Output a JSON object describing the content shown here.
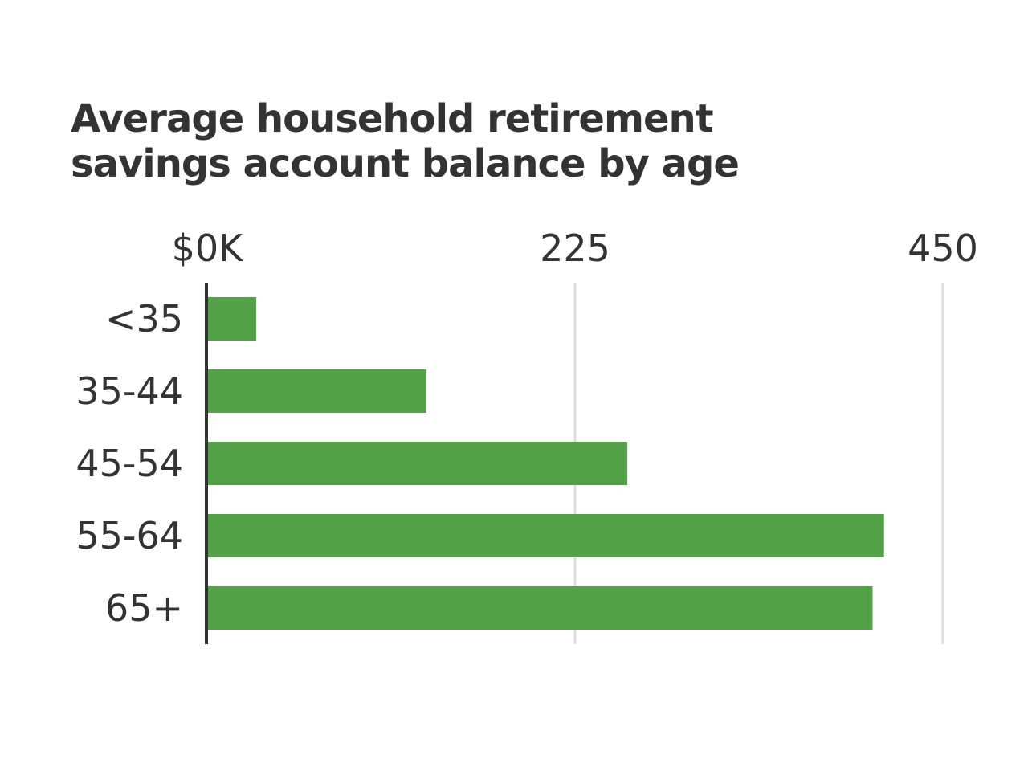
{
  "chart_data": {
    "type": "bar",
    "orientation": "horizontal",
    "title_lines": [
      "Average household retirement",
      "savings account balance by age"
    ],
    "categories": [
      "<35",
      "35-44",
      "45-54",
      "55-64",
      "65+"
    ],
    "values": [
      30,
      134,
      257,
      414,
      407
    ],
    "xlim": [
      0,
      450
    ],
    "x_ticks": [
      {
        "value": 0,
        "label": "$0K"
      },
      {
        "value": 225,
        "label": "225"
      },
      {
        "value": 450,
        "label": "450"
      }
    ],
    "grid": true,
    "bar_color": "#52a146",
    "grid_color": "#dddddd",
    "axis_color": "#333333"
  }
}
